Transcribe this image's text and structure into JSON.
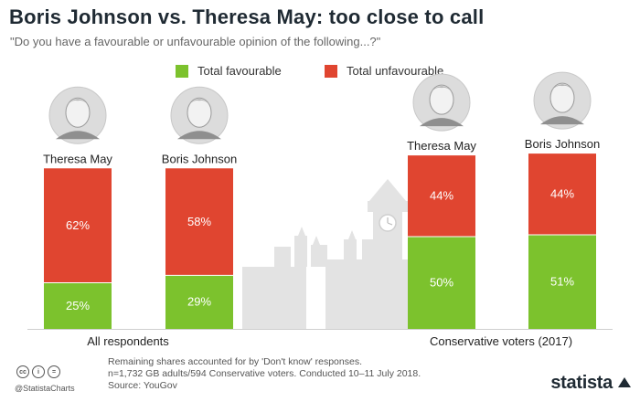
{
  "header": {
    "title": "Boris Johnson vs. Theresa May: too close to call",
    "subtitle": "\"Do you have a favourable or unfavourable opinion of the following...?\""
  },
  "colors": {
    "favourable": "#7cc22d",
    "unfavourable": "#e04530",
    "portrait_bg": "#dcdcdc",
    "skyline": "#e3e3e3"
  },
  "chart_data": {
    "type": "bar",
    "stacked": true,
    "unit": "%",
    "legend_position": "top-center",
    "groups": [
      {
        "label": "All respondents",
        "bars": [
          {
            "name": "Theresa May",
            "favourable": 25,
            "unfavourable": 62
          },
          {
            "name": "Boris Johnson",
            "favourable": 29,
            "unfavourable": 58
          }
        ]
      },
      {
        "label": "Conservative voters (2017)",
        "bars": [
          {
            "name": "Theresa May",
            "favourable": 50,
            "unfavourable": 44
          },
          {
            "name": "Boris Johnson",
            "favourable": 51,
            "unfavourable": 44
          }
        ]
      }
    ],
    "series": [
      {
        "key": "favourable",
        "name": "Total favourable"
      },
      {
        "key": "unfavourable",
        "name": "Total unfavourable"
      }
    ]
  },
  "footer": {
    "note_lines": [
      "Remaining shares accounted for by 'Don't know' responses.",
      "n=1,732 GB adults/594 Conservative voters. Conducted 10–11 July 2018.",
      "Source: YouGov"
    ],
    "handle": "@StatistaCharts",
    "brand": "statista",
    "license_icons": [
      "cc-icon",
      "by-icon",
      "nd-icon"
    ]
  }
}
